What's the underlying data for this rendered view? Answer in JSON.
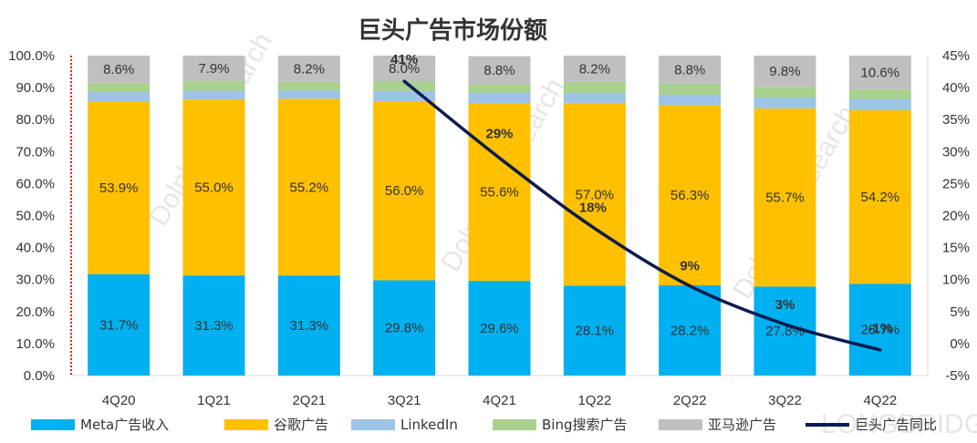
{
  "chart_data": {
    "type": "bar",
    "stacked": true,
    "title": "巨头广告市场份额",
    "categories": [
      "4Q20",
      "1Q21",
      "2Q21",
      "3Q21",
      "4Q21",
      "1Q22",
      "2Q22",
      "3Q22",
      "4Q22"
    ],
    "series": [
      {
        "name": "Meta广告收入",
        "color": "#00B0F0",
        "values": [
          31.7,
          31.3,
          31.3,
          29.8,
          29.6,
          28.1,
          28.2,
          27.8,
          28.7
        ],
        "labels": [
          "31.7%",
          "31.3%",
          "31.3%",
          "29.8%",
          "29.6%",
          "28.1%",
          "28.2%",
          "27.8%",
          "28.7%"
        ]
      },
      {
        "name": "谷歌广告",
        "color": "#FFC000",
        "values": [
          53.9,
          55.0,
          55.2,
          56.0,
          55.6,
          57.0,
          56.3,
          55.7,
          54.2
        ],
        "labels": [
          "53.9%",
          "55.0%",
          "55.2%",
          "56.0%",
          "55.6%",
          "57.0%",
          "56.3%",
          "55.7%",
          "54.2%"
        ]
      },
      {
        "name": "LinkedIn",
        "color": "#9DC3E6",
        "values": [
          3.0,
          2.8,
          2.7,
          3.1,
          3.1,
          3.2,
          3.3,
          3.4,
          3.5
        ],
        "labels": []
      },
      {
        "name": "Bing搜索广告",
        "color": "#A9D18E",
        "values": [
          2.8,
          3.0,
          2.6,
          3.1,
          2.7,
          3.5,
          3.4,
          3.3,
          3.0
        ],
        "labels": []
      },
      {
        "name": "亚马逊广告",
        "color": "#BFBFBF",
        "values": [
          8.6,
          7.9,
          8.2,
          8.0,
          8.8,
          8.2,
          8.8,
          9.8,
          10.6
        ],
        "labels": [
          "8.6%",
          "7.9%",
          "8.2%",
          "8.0%",
          "8.8%",
          "8.2%",
          "8.8%",
          "9.8%",
          "10.6%"
        ]
      }
    ],
    "line": {
      "name": "巨头广告同比",
      "color": "#0D1B4F",
      "axis": "right",
      "points": [
        {
          "category": "3Q21",
          "value": 41,
          "label": "41%"
        },
        {
          "category": "4Q21",
          "value": 29,
          "label": "29%"
        },
        {
          "category": "1Q22",
          "value": 18,
          "label": "18%"
        },
        {
          "category": "2Q22",
          "value": 9,
          "label": "9%"
        },
        {
          "category": "3Q22",
          "value": 3,
          "label": "3%"
        },
        {
          "category": "4Q22",
          "value": -1,
          "label": "-1%"
        }
      ]
    },
    "yleft": {
      "min": 0,
      "max": 100,
      "step": 10,
      "tick_labels": [
        "0.0%",
        "10.0%",
        "20.0%",
        "30.0%",
        "40.0%",
        "50.0%",
        "60.0%",
        "70.0%",
        "80.0%",
        "90.0%",
        "100.0%"
      ]
    },
    "yright": {
      "min": -5,
      "max": 45,
      "step": 5,
      "tick_labels": [
        "-5%",
        "0%",
        "5%",
        "10%",
        "15%",
        "20%",
        "25%",
        "30%",
        "35%",
        "40%",
        "45%"
      ]
    },
    "legend_position": "bottom",
    "watermark": [
      "Dolphin Research",
      "LONGBRIDGE"
    ]
  }
}
